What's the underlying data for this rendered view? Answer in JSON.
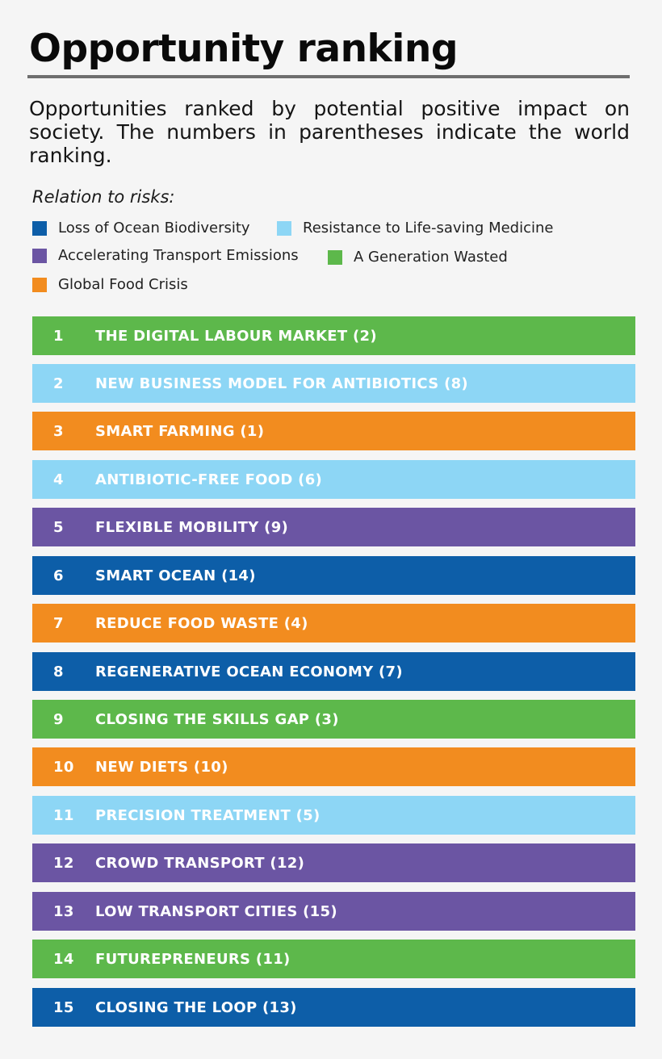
{
  "title": "Opportunity ranking",
  "intro": "Opportunities ranked by potential positive impact on society. The numbers in parentheses indicate the world ranking.",
  "legend": {
    "heading": "Relation to risks:",
    "items": [
      {
        "key": "ocean",
        "label": "Loss of Ocean Biodiversity",
        "color": "#0d5ea8"
      },
      {
        "key": "medicine",
        "label": "Resistance to Life-saving Medicine",
        "color": "#8dd6f5"
      },
      {
        "key": "transport",
        "label": "Accelerating Transport Emissions",
        "color": "#6b55a3"
      },
      {
        "key": "generation",
        "label": "A Generation Wasted",
        "color": "#5db84b"
      },
      {
        "key": "food",
        "label": "Global Food Crisis",
        "color": "#f28c1f"
      }
    ]
  },
  "ranking": [
    {
      "rank": "1",
      "label": "THE DIGITAL LABOUR MARKET (2)",
      "risk": "generation",
      "color": "#5db84b"
    },
    {
      "rank": "2",
      "label": "NEW BUSINESS MODEL FOR ANTIBIOTICS (8)",
      "risk": "medicine",
      "color": "#8dd6f5"
    },
    {
      "rank": "3",
      "label": "SMART FARMING (1)",
      "risk": "food",
      "color": "#f28c1f"
    },
    {
      "rank": "4",
      "label": "ANTIBIOTIC-FREE FOOD (6)",
      "risk": "medicine",
      "color": "#8dd6f5"
    },
    {
      "rank": "5",
      "label": "FLEXIBLE MOBILITY (9)",
      "risk": "transport",
      "color": "#6b55a3"
    },
    {
      "rank": "6",
      "label": "SMART OCEAN (14)",
      "risk": "ocean",
      "color": "#0d5ea8"
    },
    {
      "rank": "7",
      "label": "REDUCE FOOD WASTE (4)",
      "risk": "food",
      "color": "#f28c1f"
    },
    {
      "rank": "8",
      "label": "REGENERATIVE OCEAN ECONOMY (7)",
      "risk": "ocean",
      "color": "#0d5ea8"
    },
    {
      "rank": "9",
      "label": "CLOSING THE SKILLS GAP (3)",
      "risk": "generation",
      "color": "#5db84b"
    },
    {
      "rank": "10",
      "label": "NEW DIETS (10)",
      "risk": "food",
      "color": "#f28c1f"
    },
    {
      "rank": "11",
      "label": "PRECISION TREATMENT (5)",
      "risk": "medicine",
      "color": "#8dd6f5"
    },
    {
      "rank": "12",
      "label": "CROWD TRANSPORT (12)",
      "risk": "transport",
      "color": "#6b55a3"
    },
    {
      "rank": "13",
      "label": "LOW TRANSPORT CITIES (15)",
      "risk": "transport",
      "color": "#6b55a3"
    },
    {
      "rank": "14",
      "label": "FUTUREPRENEURS (11)",
      "risk": "generation",
      "color": "#5db84b"
    },
    {
      "rank": "15",
      "label": "CLOSING THE LOOP (13)",
      "risk": "ocean",
      "color": "#0d5ea8"
    }
  ]
}
